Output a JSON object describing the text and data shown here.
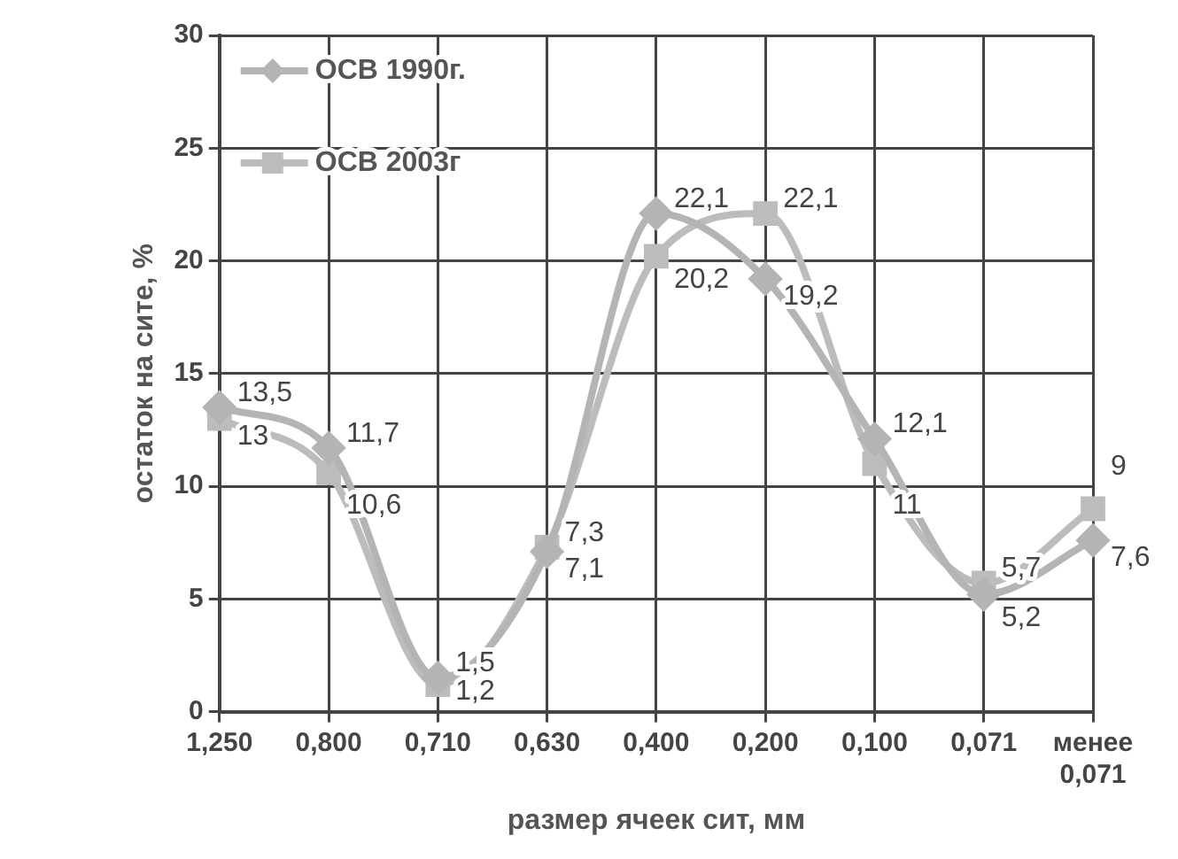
{
  "chart_data": {
    "type": "line",
    "xlabel": "размер ячеек сит, мм",
    "ylabel": "остаток на сите, %",
    "categories": [
      "1,250",
      "0,800",
      "0,710",
      "0,630",
      "0,400",
      "0,200",
      "0,100",
      "0,071",
      "менее 0,071"
    ],
    "series": [
      {
        "name": "ОСВ 1990г.",
        "color": "#b4b4b4",
        "marker": "diamond",
        "values": [
          13.5,
          11.7,
          1.5,
          7.1,
          22.1,
          19.2,
          12.1,
          5.2,
          7.6
        ],
        "value_labels": [
          "13,5",
          "11,7",
          "1,5",
          "7,1",
          "22,1",
          "19,2",
          "12,1",
          "5,2",
          "7,6"
        ]
      },
      {
        "name": "ОСВ 2003г",
        "color": "#bcbcbc",
        "marker": "square",
        "values": [
          13,
          10.6,
          1.2,
          7.3,
          20.2,
          22.1,
          11,
          5.7,
          9
        ],
        "value_labels": [
          "13",
          "10,6",
          "1,2",
          "7,3",
          "20,2",
          "22,1",
          "11",
          "5,7",
          "9"
        ]
      }
    ],
    "ylim": [
      0,
      30
    ],
    "yticks": [
      0,
      5,
      10,
      15,
      20,
      25,
      30
    ],
    "grid": true,
    "legend": "top left",
    "line_style": "solid"
  }
}
